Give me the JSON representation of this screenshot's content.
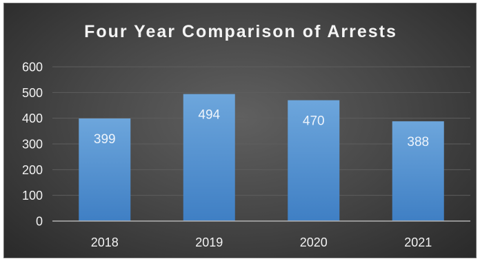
{
  "chart_data": {
    "type": "bar",
    "title": "Four Year Comparison of Arrests",
    "categories": [
      "2018",
      "2019",
      "2020",
      "2021"
    ],
    "values": [
      399,
      494,
      470,
      388
    ],
    "data_labels": [
      "399",
      "494",
      "470",
      "388"
    ],
    "ylim": [
      0,
      600
    ],
    "yticks": [
      0,
      100,
      200,
      300,
      400,
      500,
      600
    ],
    "xlabel": "",
    "ylabel": "",
    "grid": true,
    "legend": "none",
    "colors": {
      "bar_top": "#6da6dc",
      "bar_bottom": "#3f7fc4",
      "background_center": "#606060",
      "background_edge": "#262626",
      "grid": "#5e5e5e",
      "axis": "#b3b3b3",
      "text": "#f2f2f2"
    }
  }
}
